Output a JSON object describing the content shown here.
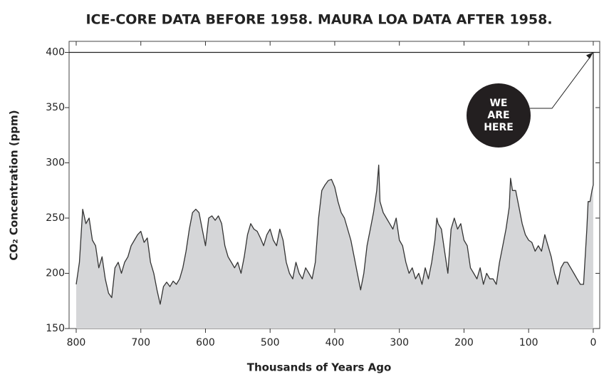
{
  "chart_data": {
    "type": "area",
    "title": "ICE-CORE DATA BEFORE 1958. MAURA LOA DATA AFTER 1958.",
    "xlabel": "Thousands of Years Ago",
    "ylabel": "CO₂ Concentration (ppm)",
    "annotation": [
      "WE",
      "ARE",
      "HERE"
    ],
    "hline": 400,
    "line_color": "#333333",
    "fill_color": "#d5d6d8",
    "xlim": [
      811,
      -10
    ],
    "ylim": [
      150,
      410
    ],
    "xticks": [
      800,
      700,
      600,
      500,
      400,
      300,
      200,
      100,
      0
    ],
    "yticks": [
      150,
      200,
      250,
      300,
      350,
      400
    ],
    "x": [
      800,
      795,
      790,
      785,
      780,
      775,
      770,
      765,
      760,
      755,
      750,
      745,
      740,
      735,
      730,
      725,
      720,
      715,
      710,
      705,
      700,
      695,
      690,
      685,
      680,
      675,
      670,
      665,
      660,
      655,
      650,
      645,
      640,
      635,
      630,
      625,
      620,
      615,
      610,
      605,
      600,
      595,
      590,
      585,
      580,
      575,
      570,
      565,
      560,
      555,
      550,
      545,
      540,
      535,
      530,
      525,
      520,
      515,
      510,
      505,
      500,
      495,
      490,
      485,
      480,
      475,
      470,
      465,
      460,
      455,
      450,
      445,
      440,
      435,
      430,
      425,
      420,
      415,
      410,
      405,
      400,
      395,
      390,
      385,
      380,
      375,
      370,
      365,
      360,
      355,
      350,
      345,
      340,
      335,
      332,
      330,
      325,
      320,
      315,
      310,
      305,
      300,
      295,
      290,
      285,
      280,
      275,
      270,
      265,
      260,
      255,
      250,
      245,
      242,
      240,
      235,
      230,
      225,
      220,
      215,
      210,
      205,
      200,
      195,
      190,
      185,
      180,
      175,
      170,
      165,
      160,
      155,
      150,
      145,
      140,
      135,
      130,
      128,
      125,
      120,
      115,
      110,
      105,
      100,
      95,
      90,
      85,
      80,
      75,
      70,
      65,
      60,
      55,
      50,
      45,
      40,
      35,
      30,
      25,
      20,
      15,
      10,
      8,
      5,
      2,
      0,
      0
    ],
    "values": [
      190,
      210,
      258,
      245,
      250,
      230,
      225,
      205,
      215,
      195,
      182,
      178,
      205,
      210,
      200,
      210,
      215,
      225,
      230,
      235,
      238,
      228,
      232,
      210,
      200,
      185,
      172,
      188,
      192,
      188,
      193,
      190,
      195,
      205,
      220,
      240,
      255,
      258,
      255,
      240,
      225,
      250,
      252,
      248,
      252,
      245,
      225,
      215,
      210,
      205,
      210,
      200,
      215,
      235,
      245,
      240,
      238,
      232,
      225,
      235,
      240,
      230,
      225,
      240,
      230,
      210,
      200,
      195,
      210,
      200,
      195,
      205,
      200,
      195,
      210,
      250,
      275,
      280,
      284,
      285,
      278,
      265,
      255,
      250,
      240,
      230,
      215,
      200,
      185,
      200,
      225,
      240,
      255,
      275,
      298,
      265,
      255,
      250,
      245,
      240,
      250,
      230,
      225,
      210,
      200,
      205,
      195,
      200,
      190,
      205,
      195,
      210,
      230,
      250,
      245,
      240,
      220,
      200,
      240,
      250,
      240,
      245,
      230,
      225,
      205,
      200,
      195,
      205,
      190,
      200,
      195,
      195,
      190,
      210,
      225,
      240,
      260,
      286,
      275,
      275,
      260,
      245,
      235,
      230,
      228,
      220,
      225,
      220,
      235,
      225,
      215,
      200,
      190,
      205,
      210,
      210,
      205,
      200,
      195,
      190,
      190,
      240,
      265,
      265,
      275,
      280,
      400
    ]
  }
}
